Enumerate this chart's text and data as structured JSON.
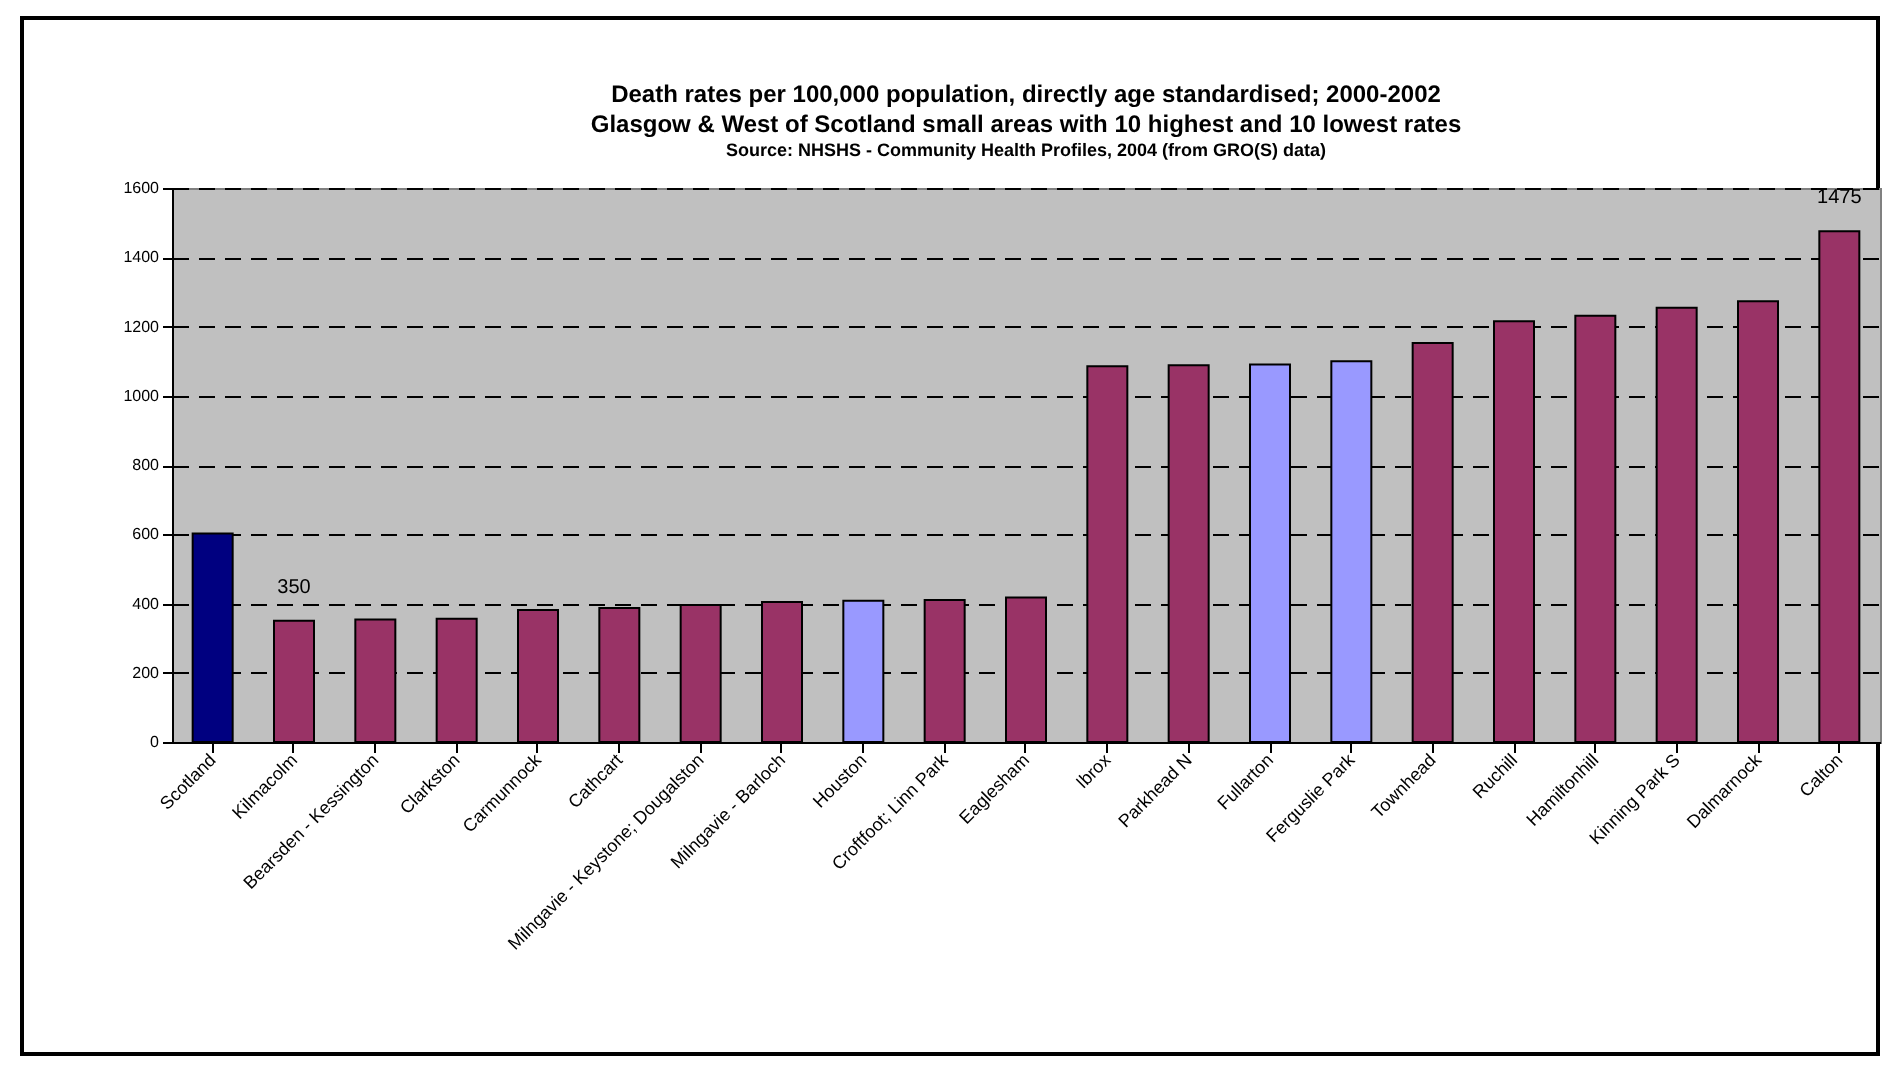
{
  "chart_data": {
    "type": "bar",
    "title": "Death rates per 100,000 population, directly age standardised; 2000-2002\nGlasgow & West of Scotland small areas with 10 highest and 10 lowest rates",
    "annotations": [
      "Source: NHSHS - Community Health Profiles, 2004 (from GRO(S) data)"
    ],
    "categories": [
      "Scotland",
      "Kilmacolm",
      "Bearsden - Kessington",
      "Clarkston",
      "Carmunnock",
      "Cathcart",
      "Milngavie - Keystone; Dougalston",
      "Milngavie - Barloch",
      "Houston",
      "Croftfoot; Linn Park",
      "Eaglesham",
      "Ibrox",
      "Parkhead N",
      "Fullarton",
      "Ferguslie Park",
      "Townhead",
      "Ruchill",
      "Hamiltonhill",
      "Kinning Park S",
      "Dalmarnock",
      "Calton"
    ],
    "values": [
      602,
      350,
      354,
      356,
      381,
      387,
      396,
      404,
      408,
      410,
      417,
      1085,
      1088,
      1090,
      1100,
      1152,
      1215,
      1231,
      1254,
      1273,
      1475
    ],
    "colors": [
      "#000080",
      "#993366",
      "#993366",
      "#993366",
      "#993366",
      "#993366",
      "#993366",
      "#993366",
      "#9999ff",
      "#993366",
      "#993366",
      "#993366",
      "#993366",
      "#9999ff",
      "#9999ff",
      "#993366",
      "#993366",
      "#993366",
      "#993366",
      "#993366",
      "#993366"
    ],
    "value_labels": [
      null,
      "350",
      null,
      null,
      null,
      null,
      null,
      null,
      null,
      null,
      null,
      null,
      null,
      null,
      null,
      null,
      null,
      null,
      null,
      null,
      "1475"
    ],
    "ylim": [
      0,
      1600
    ],
    "yticks": [
      0,
      200,
      400,
      600,
      800,
      1000,
      1200,
      1400,
      1600
    ],
    "grid": "y"
  }
}
